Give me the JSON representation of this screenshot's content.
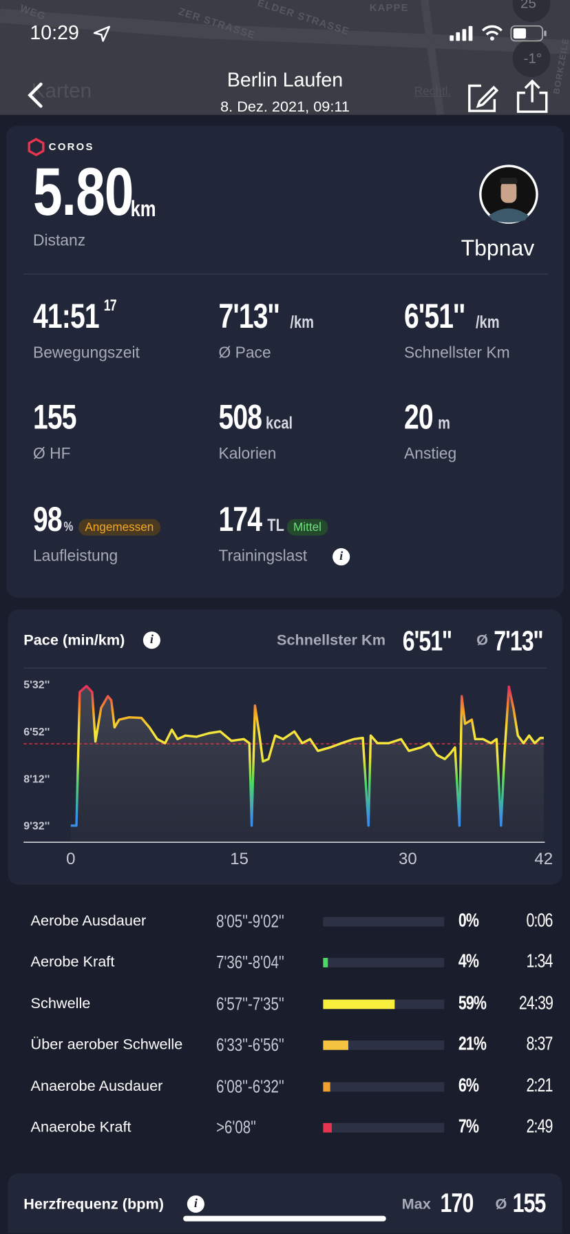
{
  "status_bar": {
    "time": "10:29"
  },
  "map": {
    "logo": "Karten",
    "legal": "Rechtl.",
    "streets": [
      "WEG",
      "ZER STRASSE",
      "ELDER STRASSE",
      "KAPPE",
      "BORKZEILE"
    ],
    "temperature": "-1°",
    "badge": "25"
  },
  "header": {
    "title": "Berlin Laufen",
    "subtitle": "8. Dez. 2021, 09:11"
  },
  "summary": {
    "brand": "COROS",
    "distance": "5.80",
    "distance_unit": "km",
    "distance_label": "Distanz",
    "user": "Tbpnav"
  },
  "stats": [
    {
      "value": "41:51",
      "sup": "17",
      "label": "Bewegungszeit"
    },
    {
      "value": "7'13''",
      "unit": "/km",
      "label": "Ø Pace"
    },
    {
      "value": "6'51''",
      "unit": "/km",
      "label": "Schnellster Km"
    },
    {
      "value": "155",
      "label": "Ø HF"
    },
    {
      "value": "508",
      "unit": "kcal",
      "label": "Kalorien"
    },
    {
      "value": "20",
      "unit": "m",
      "label": "Anstieg"
    },
    {
      "value": "98",
      "unit": "%",
      "badge": "Angemessen",
      "label": "Laufleistung"
    },
    {
      "value": "174",
      "unit": "TL",
      "badge": "Mittel",
      "label": "Trainingslast"
    }
  ],
  "chart_data": {
    "type": "line",
    "title": "Pace (min/km)",
    "fastest_label": "Schnellster Km",
    "fastest_value": "6'51''",
    "average_symbol": "Ø",
    "average_value": "7'13''",
    "x": [
      0,
      0.5,
      0.8,
      1.4,
      1.9,
      2.2,
      2.7,
      3.3,
      3.6,
      3.9,
      4.3,
      5.2,
      6.3,
      7.0,
      7.7,
      8.4,
      9.0,
      9.5,
      10.2,
      11.2,
      12.3,
      13.3,
      14.3,
      15.4,
      15.9,
      16.1,
      16.4,
      16.8,
      17.1,
      17.6,
      18.2,
      18.9,
      19.9,
      20.6,
      21.3,
      22.0,
      23.1,
      24.1,
      25.2,
      26.0,
      26.5,
      26.7,
      27.3,
      28.3,
      29.4,
      30.1,
      31.2,
      31.9,
      32.6,
      33.3,
      33.8,
      34.2,
      34.6,
      34.8,
      35.1,
      35.7,
      36.0,
      36.7,
      37.4,
      37.9,
      38.3,
      38.6,
      39.0,
      39.4,
      39.8,
      40.3,
      40.8,
      41.3,
      41.8,
      42.1
    ],
    "values": [
      572,
      572,
      345,
      335,
      345,
      429,
      372,
      352,
      359,
      405,
      392,
      388,
      389,
      405,
      425,
      432,
      409,
      425,
      419,
      421,
      415,
      412,
      428,
      425,
      432,
      572,
      368,
      419,
      463,
      459,
      419,
      425,
      412,
      432,
      425,
      445,
      439,
      432,
      425,
      423,
      572,
      419,
      432,
      432,
      425,
      445,
      439,
      432,
      452,
      459,
      449,
      439,
      572,
      352,
      399,
      392,
      425,
      425,
      432,
      425,
      572,
      452,
      336,
      372,
      419,
      432,
      419,
      432,
      423,
      423
    ],
    "xlim": [
      -4.2,
      42.2
    ],
    "xticks": [
      0,
      15,
      30,
      42
    ],
    "ylim": [
      305,
      599
    ],
    "y_inverted": true,
    "yticks": [
      {
        "value": 332,
        "label": "5'32''"
      },
      {
        "value": 412,
        "label": "6'52''"
      },
      {
        "value": 492,
        "label": "8'12''"
      },
      {
        "value": 572,
        "label": "9'32''"
      }
    ],
    "average_line": {
      "value": 433,
      "color": "#e8344e"
    },
    "color_stops": [
      {
        "value": 340,
        "color": "#e8345a"
      },
      {
        "value": 380,
        "color": "#f5a623"
      },
      {
        "value": 412,
        "color": "#f5e43c"
      },
      {
        "value": 455,
        "color": "#f5e43c"
      },
      {
        "value": 500,
        "color": "#4cd964"
      },
      {
        "value": 560,
        "color": "#3b8ee8"
      }
    ]
  },
  "zones": {
    "names": [
      "Aerobe Ausdauer",
      "Aerobe Kraft",
      "Schwelle",
      "Über aerober Schwelle",
      "Anaerobe Ausdauer",
      "Anaerobe Kraft"
    ],
    "ranges": [
      "8'05''-9'02''",
      "7'36''-8'04''",
      "6'57''-7'35''",
      "6'33''-6'56''",
      "6'08''-6'32''",
      ">6'08''"
    ],
    "values": [
      0,
      4,
      59,
      21,
      6,
      7
    ],
    "value_labels": [
      "0%",
      "4%",
      "59%",
      "21%",
      "6%",
      "7%"
    ],
    "times": [
      "0:06",
      "1:34",
      "24:39",
      "8:37",
      "2:21",
      "2:49"
    ],
    "colors": [
      "#5b6170",
      "#4cd964",
      "#f8ee3c",
      "#f5c542",
      "#f0a030",
      "#e8344e"
    ],
    "xlim": [
      0,
      100
    ]
  },
  "heart_rate": {
    "title": "Herzfrequenz (bpm)",
    "max_label": "Max",
    "max": "170",
    "avg_symbol": "Ø",
    "avg": "155"
  }
}
